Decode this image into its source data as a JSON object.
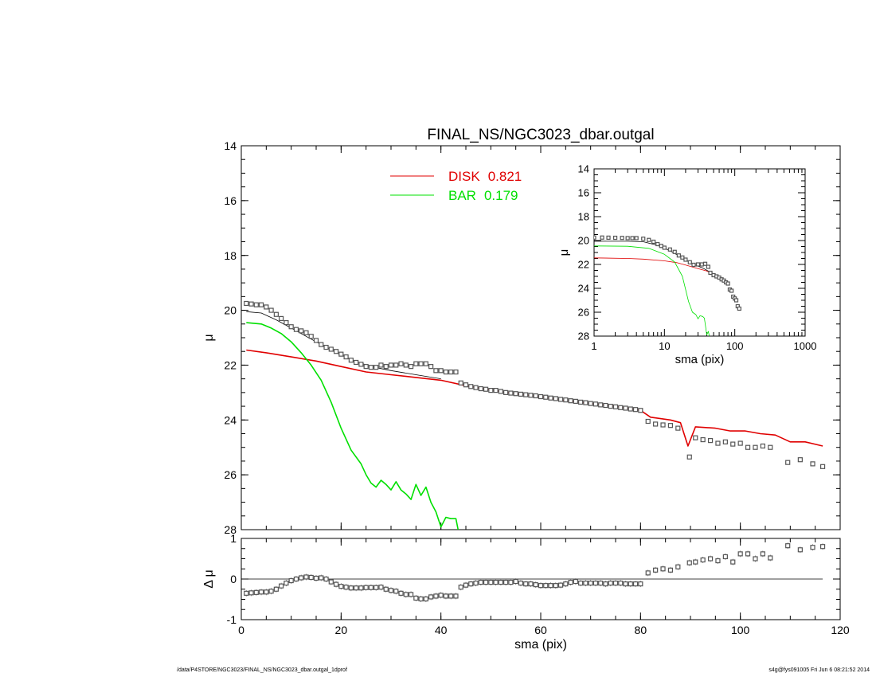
{
  "footer": {
    "left": "/data/P4STORE/NGC3023/FINAL_NS/NGC3023_dbar.outgal_1dprof",
    "right": "s4g@fys091005  Fri Jun  6 08:21:52 2014"
  },
  "chart_data": [
    {
      "id": "main",
      "type": "line",
      "title": "FINAL_NS/NGC3023_dbar.outgal",
      "xlabel": "",
      "ylabel": "μ",
      "xlim": [
        0,
        120
      ],
      "ylim": [
        14,
        28
      ],
      "y_inverted": true,
      "x_ticks": [
        0,
        20,
        40,
        60,
        80,
        100,
        120
      ],
      "y_ticks": [
        14,
        16,
        18,
        20,
        22,
        24,
        26,
        28
      ],
      "legend": {
        "placement": "top-center",
        "entries": [
          {
            "label": "DISK",
            "value": "0.821",
            "color": "#e00000"
          },
          {
            "label": "BAR",
            "value": "0.179",
            "color": "#00e000"
          }
        ]
      },
      "series": [
        {
          "name": "DISK",
          "color": "#e00000",
          "x": [
            1,
            5,
            10,
            15,
            20,
            25,
            30,
            35,
            40,
            45,
            50,
            55,
            60,
            65,
            70,
            75,
            80,
            82,
            86,
            88,
            89.5,
            91,
            95,
            98,
            101,
            104,
            107,
            110,
            113,
            116.5
          ],
          "y": [
            21.45,
            21.55,
            21.7,
            21.85,
            22.05,
            22.25,
            22.35,
            22.45,
            22.55,
            22.75,
            22.9,
            23.05,
            23.15,
            23.3,
            23.4,
            23.5,
            23.65,
            23.9,
            24.0,
            24.1,
            24.95,
            24.25,
            24.3,
            24.4,
            24.4,
            24.5,
            24.55,
            24.8,
            24.8,
            24.95
          ]
        },
        {
          "name": "BAR",
          "color": "#00e000",
          "x": [
            1,
            4,
            6,
            8,
            10,
            12,
            14,
            16,
            18,
            20,
            22,
            24,
            25,
            26,
            27,
            28,
            29,
            30,
            31,
            32,
            33,
            34,
            35,
            36,
            37,
            38,
            39,
            40,
            41,
            42,
            43,
            43.5
          ],
          "y": [
            20.45,
            20.5,
            20.65,
            20.85,
            21.15,
            21.55,
            22.0,
            22.55,
            23.35,
            24.3,
            25.1,
            25.6,
            26.0,
            26.3,
            26.45,
            26.2,
            26.35,
            26.55,
            26.25,
            26.55,
            26.7,
            26.9,
            26.35,
            26.75,
            26.45,
            27.0,
            27.35,
            27.9,
            27.55,
            27.6,
            27.6,
            28.05
          ]
        },
        {
          "name": "",
          "color": "#000000",
          "x": [
            1,
            4,
            7,
            10,
            13,
            16,
            19,
            22,
            26,
            30,
            35,
            40
          ],
          "y": [
            20.05,
            20.1,
            20.35,
            20.65,
            20.95,
            21.25,
            21.55,
            21.8,
            22.05,
            22.2,
            22.35,
            22.5
          ]
        },
        {
          "name": "",
          "type": "scatter",
          "color": "#555555",
          "x": [
            1,
            2,
            3,
            4,
            5,
            6,
            7,
            8,
            9,
            10,
            11,
            12,
            13,
            14,
            15,
            16,
            17,
            18,
            19,
            20,
            21,
            22,
            23,
            24,
            25,
            26,
            27,
            28,
            29,
            30,
            31,
            32,
            33,
            34,
            35,
            36,
            37,
            38,
            39,
            40,
            41,
            42,
            43,
            44,
            45,
            46,
            47,
            48,
            49,
            50,
            51,
            52,
            53,
            54,
            55,
            56,
            57,
            58,
            59,
            60,
            61,
            62,
            63,
            64,
            65,
            66,
            67,
            68,
            69,
            70,
            71,
            72,
            73,
            74,
            75,
            76,
            77,
            78,
            79,
            80,
            81.5,
            83,
            84.5,
            86,
            87.5,
            89.8,
            91,
            92.5,
            94,
            95.5,
            97,
            98.5,
            100,
            101.5,
            103,
            104.5,
            106,
            109.5,
            112,
            114.5,
            116.5
          ],
          "y": [
            19.75,
            19.77,
            19.8,
            19.8,
            19.88,
            20.0,
            20.15,
            20.3,
            20.45,
            20.6,
            20.7,
            20.75,
            20.82,
            20.95,
            21.1,
            21.25,
            21.35,
            21.42,
            21.5,
            21.6,
            21.7,
            21.82,
            21.9,
            21.97,
            22.05,
            22.08,
            22.08,
            22.0,
            22.05,
            22.0,
            22.0,
            21.95,
            22.0,
            22.05,
            21.95,
            21.95,
            21.95,
            22.05,
            22.2,
            22.2,
            22.25,
            22.25,
            22.25,
            22.65,
            22.72,
            22.78,
            22.82,
            22.86,
            22.88,
            22.92,
            22.92,
            22.96,
            23.0,
            23.02,
            23.04,
            23.06,
            23.08,
            23.1,
            23.12,
            23.15,
            23.17,
            23.2,
            23.22,
            23.25,
            23.27,
            23.3,
            23.32,
            23.35,
            23.37,
            23.4,
            23.42,
            23.45,
            23.47,
            23.5,
            23.52,
            23.55,
            23.57,
            23.6,
            23.62,
            23.65,
            24.05,
            24.15,
            24.18,
            24.2,
            24.3,
            25.35,
            24.65,
            24.72,
            24.75,
            24.85,
            24.8,
            24.88,
            24.85,
            25.0,
            25.0,
            24.95,
            25.0,
            25.55,
            25.45,
            25.6,
            25.7
          ]
        }
      ]
    },
    {
      "id": "residual",
      "type": "scatter",
      "xlabel": "sma (pix)",
      "ylabel": "Δ μ",
      "xlim": [
        0,
        120
      ],
      "ylim": [
        -1,
        1
      ],
      "x_ticks": [
        0,
        20,
        40,
        60,
        80,
        100,
        120
      ],
      "y_ticks": [
        -1,
        0,
        1
      ],
      "reference_line": 0,
      "series": [
        {
          "name": "",
          "color": "#555555",
          "x": [
            1,
            2,
            3,
            4,
            5,
            6,
            7,
            8,
            9,
            10,
            11,
            12,
            13,
            14,
            15,
            16,
            17,
            18,
            19,
            20,
            21,
            22,
            23,
            24,
            25,
            26,
            27,
            28,
            29,
            30,
            31,
            32,
            33,
            34,
            35,
            36,
            37,
            38,
            39,
            40,
            41,
            42,
            43,
            44,
            45,
            46,
            47,
            48,
            49,
            50,
            51,
            52,
            53,
            54,
            55,
            56,
            57,
            58,
            59,
            60,
            61,
            62,
            63,
            64,
            65,
            66,
            67,
            68,
            69,
            70,
            71,
            72,
            73,
            74,
            75,
            76,
            77,
            78,
            79,
            80,
            81.5,
            83,
            84.5,
            86,
            87.5,
            89.8,
            91,
            92.5,
            94,
            95.5,
            97,
            98.5,
            100,
            101.5,
            103,
            104.5,
            106,
            109.5,
            112,
            114.5,
            116.5
          ],
          "y": [
            -0.35,
            -0.34,
            -0.33,
            -0.32,
            -0.32,
            -0.3,
            -0.25,
            -0.17,
            -0.1,
            -0.04,
            0.0,
            0.03,
            0.05,
            0.04,
            0.02,
            0.03,
            0.0,
            -0.07,
            -0.13,
            -0.18,
            -0.2,
            -0.22,
            -0.22,
            -0.22,
            -0.21,
            -0.21,
            -0.21,
            -0.2,
            -0.25,
            -0.28,
            -0.3,
            -0.35,
            -0.38,
            -0.38,
            -0.47,
            -0.49,
            -0.49,
            -0.44,
            -0.42,
            -0.4,
            -0.42,
            -0.42,
            -0.42,
            -0.2,
            -0.15,
            -0.12,
            -0.1,
            -0.08,
            -0.08,
            -0.08,
            -0.08,
            -0.08,
            -0.08,
            -0.08,
            -0.06,
            -0.1,
            -0.12,
            -0.12,
            -0.14,
            -0.16,
            -0.16,
            -0.16,
            -0.16,
            -0.15,
            -0.12,
            -0.08,
            -0.06,
            -0.1,
            -0.1,
            -0.1,
            -0.1,
            -0.1,
            -0.12,
            -0.1,
            -0.1,
            -0.1,
            -0.12,
            -0.12,
            -0.12,
            -0.12,
            0.15,
            0.22,
            0.25,
            0.22,
            0.3,
            0.4,
            0.42,
            0.47,
            0.5,
            0.45,
            0.55,
            0.42,
            0.62,
            0.62,
            0.5,
            0.62,
            0.52,
            0.82,
            0.72,
            0.78,
            0.8
          ]
        }
      ]
    },
    {
      "id": "inset",
      "type": "line",
      "xlabel": "sma (pix)",
      "ylabel": "μ",
      "xlim": [
        1,
        1000
      ],
      "x_scale": "log",
      "ylim": [
        14,
        28
      ],
      "y_inverted": true,
      "x_ticks": [
        1,
        10,
        100,
        1000
      ],
      "y_ticks": [
        14,
        16,
        18,
        20,
        22,
        24,
        26,
        28
      ],
      "series": [
        {
          "name": "DISK",
          "color": "#e00000",
          "x": [
            1,
            3,
            5,
            10,
            15,
            20,
            30,
            40,
            50
          ],
          "y": [
            21.45,
            21.5,
            21.55,
            21.7,
            21.85,
            22.05,
            22.35,
            22.55,
            22.85
          ]
        },
        {
          "name": "BAR",
          "color": "#00e000",
          "x": [
            1,
            3,
            6,
            10,
            14,
            18,
            22,
            25,
            28,
            30,
            32,
            35,
            37,
            40,
            42,
            43.5
          ],
          "y": [
            20.45,
            20.48,
            20.65,
            21.15,
            21.8,
            23.0,
            25.1,
            26.0,
            26.2,
            26.55,
            26.3,
            26.35,
            26.5,
            27.9,
            27.6,
            28.0
          ]
        },
        {
          "name": "",
          "color": "#000000",
          "x": [
            1,
            3,
            5,
            8,
            12,
            18,
            25,
            35,
            50
          ],
          "y": [
            20.05,
            20.06,
            20.1,
            20.4,
            20.85,
            21.45,
            21.95,
            22.3,
            22.8
          ]
        },
        {
          "name": "",
          "type": "scatter",
          "color": "#555555",
          "x": [
            1,
            1.3,
            1.6,
            2,
            2.5,
            3,
            3.5,
            4,
            5,
            6,
            7,
            8,
            9,
            10,
            12,
            14,
            16,
            18,
            20,
            23,
            26,
            30,
            34,
            38,
            42,
            45,
            50,
            55,
            60,
            65,
            70,
            75,
            80,
            85,
            90,
            95,
            100,
            105,
            110,
            116
          ],
          "y": [
            19.75,
            19.75,
            19.76,
            19.77,
            19.78,
            19.8,
            19.8,
            19.8,
            19.85,
            19.95,
            20.1,
            20.3,
            20.45,
            20.6,
            20.75,
            20.95,
            21.25,
            21.42,
            21.6,
            21.82,
            22.03,
            22.0,
            22.0,
            21.95,
            22.2,
            22.7,
            22.9,
            23.0,
            23.1,
            23.25,
            23.35,
            23.5,
            23.6,
            24.1,
            24.2,
            24.7,
            24.85,
            25.0,
            25.5,
            25.7
          ]
        }
      ]
    }
  ]
}
